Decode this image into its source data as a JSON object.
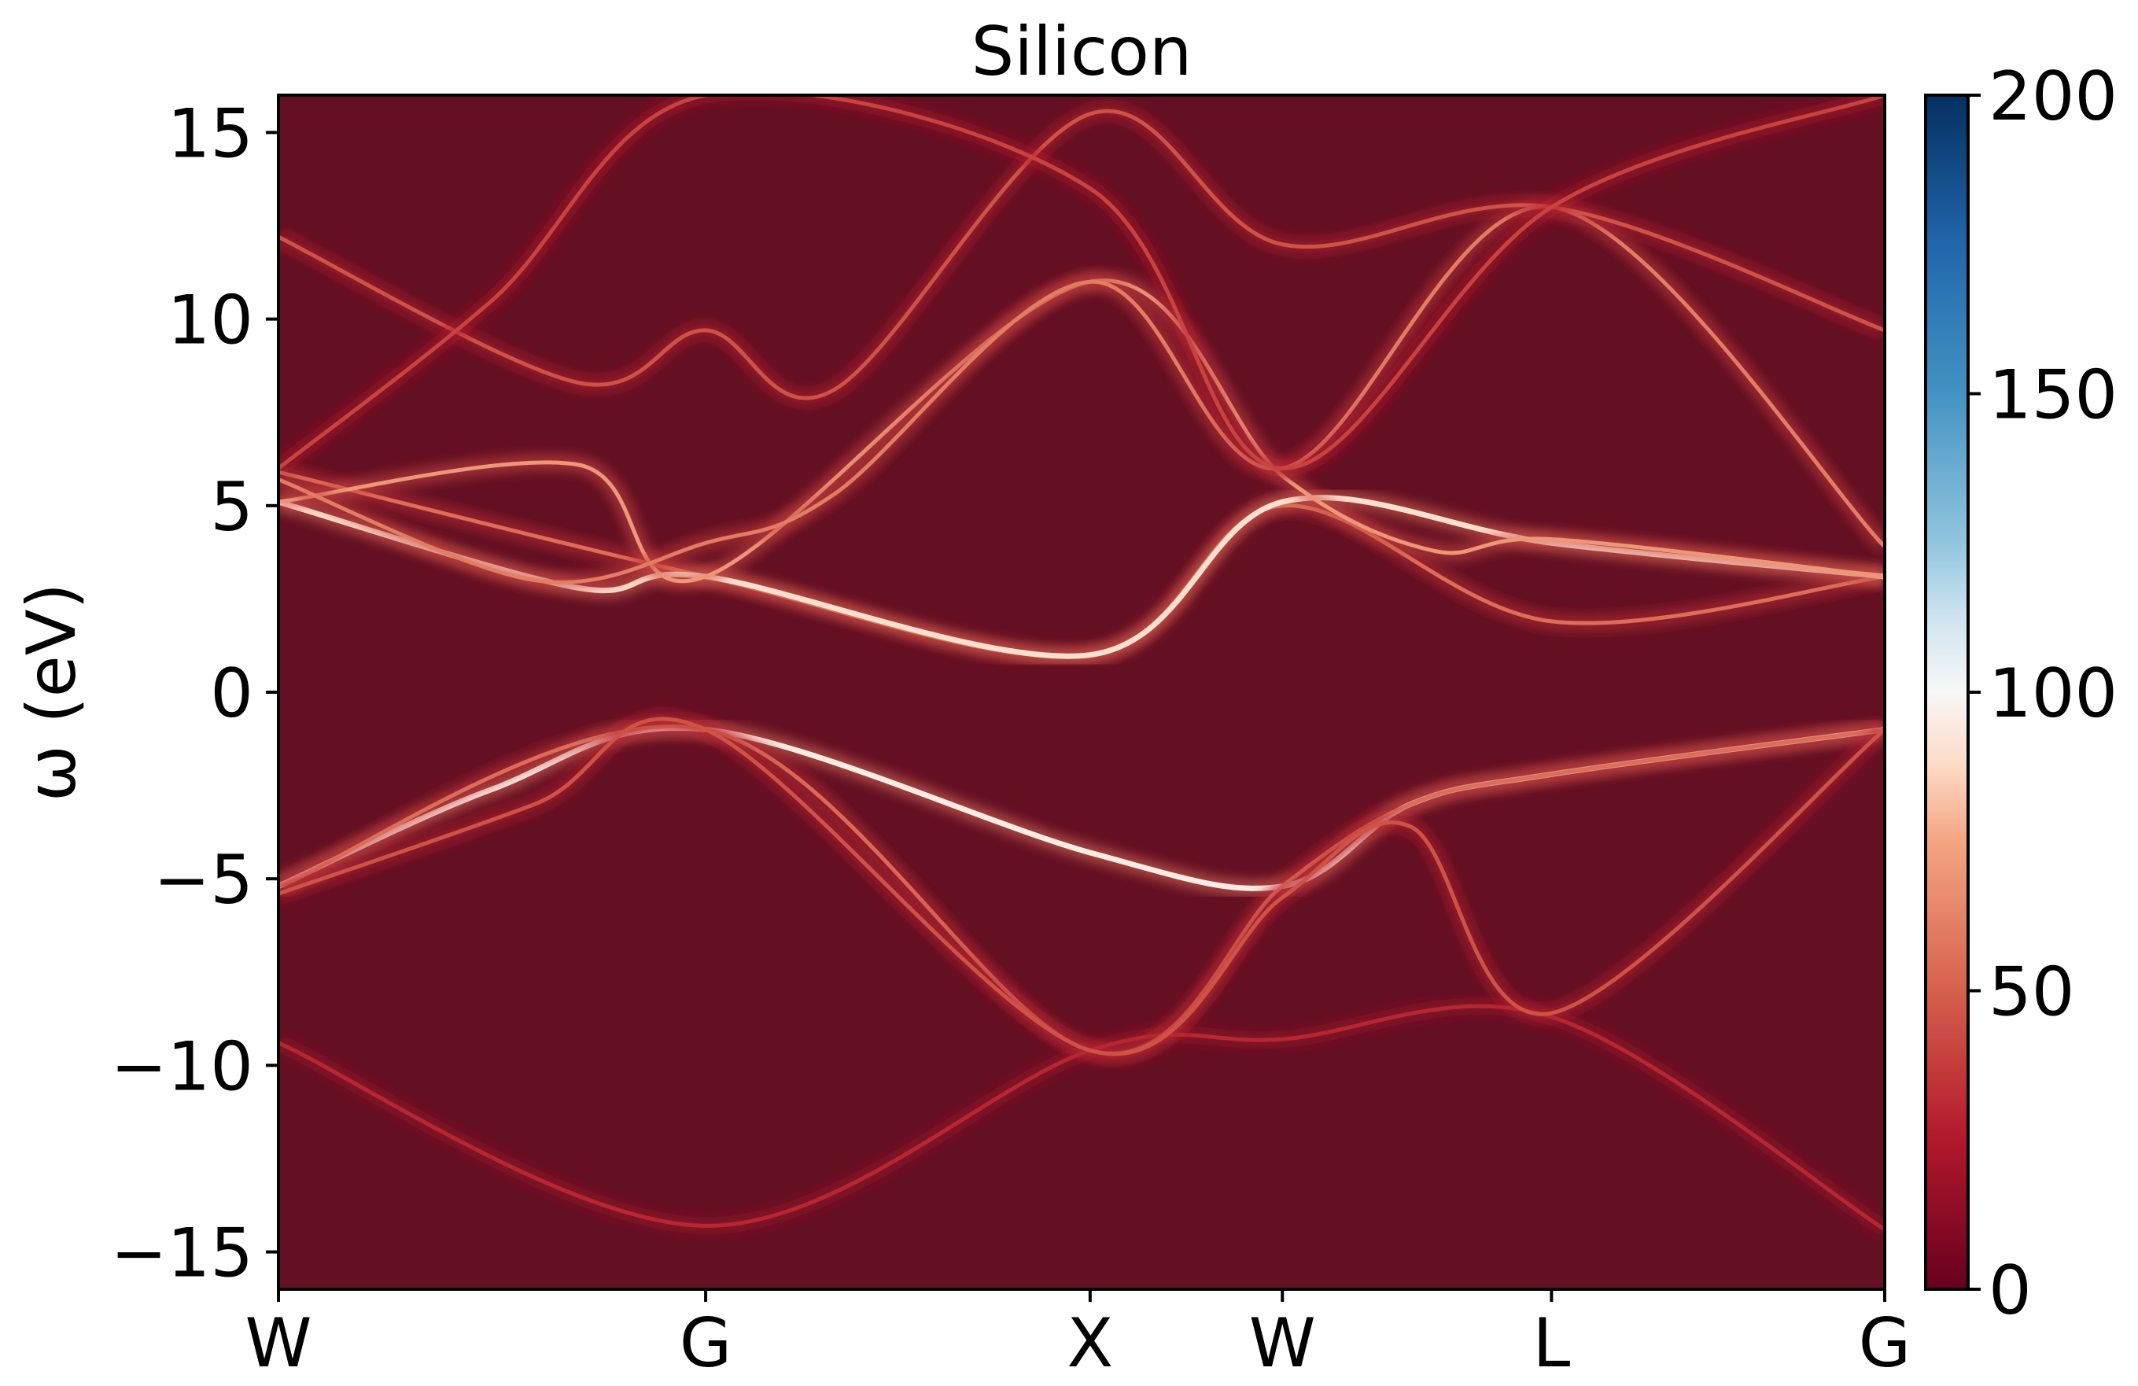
{
  "chart_data": {
    "type": "heatmap",
    "title": "Silicon",
    "xlabel": "",
    "ylabel": "ω (eV)",
    "ylim": [
      -16,
      16
    ],
    "x_ticks": [
      {
        "label": "W",
        "k": 0.0
      },
      {
        "label": "G",
        "k": 1.0
      },
      {
        "label": "X",
        "k": 1.9
      },
      {
        "label": "W",
        "k": 2.35
      },
      {
        "label": "L",
        "k": 2.98
      },
      {
        "label": "G",
        "k": 3.76
      }
    ],
    "xlim": [
      0,
      3.76
    ],
    "y_ticks": [
      {
        "label": "−15",
        "value": -15
      },
      {
        "label": "−10",
        "value": -10
      },
      {
        "label": "−5",
        "value": -5
      },
      {
        "label": "0",
        "value": 0
      },
      {
        "label": "5",
        "value": 5
      },
      {
        "label": "10",
        "value": 10
      },
      {
        "label": "15",
        "value": 15
      }
    ],
    "colorbar": {
      "colormap": "RdBu",
      "range": [
        0,
        200
      ],
      "ticks": [
        {
          "label": "0",
          "value": 0
        },
        {
          "label": "50",
          "value": 50
        },
        {
          "label": "100",
          "value": 100
        },
        {
          "label": "150",
          "value": 150
        },
        {
          "label": "200",
          "value": 200
        }
      ]
    },
    "background_color": "#640f22",
    "series": [
      {
        "k": [
          0,
          1.0,
          1.9,
          2.35,
          2.98,
          3.76
        ],
        "omega": [
          -9.4,
          -14.3,
          -9.6,
          -9.3,
          -8.7,
          -14.4
        ],
        "intensity": 30
      },
      {
        "k": [
          0,
          0.5,
          1.0,
          1.9,
          2.35,
          2.65,
          2.98,
          3.76
        ],
        "omega": [
          -5.2,
          -2.6,
          -1.0,
          -4.3,
          -5.2,
          -3.0,
          -2.2,
          -1.0
        ],
        "intensity": 95
      },
      {
        "k": [
          0,
          1.0,
          1.9,
          2.35,
          2.65,
          2.98,
          3.76
        ],
        "omega": [
          -5.2,
          -1.0,
          -9.6,
          -5.2,
          -3.0,
          -2.2,
          -1.0
        ],
        "intensity": 55
      },
      {
        "k": [
          0,
          0.6,
          1.0,
          1.9,
          2.35,
          2.65,
          2.98,
          3.76
        ],
        "omega": [
          -5.4,
          -3.0,
          -1.0,
          -9.6,
          -5.5,
          -3.6,
          -8.6,
          -1.0
        ],
        "intensity": 45
      },
      {
        "k": [
          0,
          1.0,
          1.9,
          2.35,
          2.98,
          3.76
        ],
        "omega": [
          5.9,
          3.1,
          1.0,
          5.0,
          1.9,
          3.1
        ],
        "intensity": 55
      },
      {
        "k": [
          0,
          0.7,
          1.0,
          1.9,
          2.35,
          2.98,
          3.76
        ],
        "omega": [
          5.1,
          2.8,
          3.1,
          1.0,
          5.1,
          4.0,
          3.1
        ],
        "intensity": 90
      },
      {
        "k": [
          0,
          0.7,
          1.0,
          1.9,
          2.35,
          2.7,
          2.98,
          3.76
        ],
        "omega": [
          5.1,
          6.1,
          3.1,
          11.0,
          5.8,
          3.8,
          4.1,
          3.1
        ],
        "intensity": 70
      },
      {
        "k": [
          0,
          0.6,
          1.0,
          1.3,
          1.9,
          2.35,
          2.98,
          3.76
        ],
        "omega": [
          5.7,
          3.0,
          4.0,
          5.3,
          11.0,
          6.0,
          13.0,
          3.9
        ],
        "intensity": 60
      },
      {
        "k": [
          0,
          0.7,
          1.0,
          1.3,
          1.9,
          2.35,
          2.98,
          3.76
        ],
        "omega": [
          12.2,
          8.3,
          9.7,
          8.1,
          15.5,
          12.0,
          13.0,
          9.7
        ],
        "intensity": 45
      },
      {
        "k": [
          0,
          0.5,
          1.0,
          1.9,
          2.35,
          2.98,
          3.76
        ],
        "omega": [
          6.0,
          10.5,
          16.0,
          13.5,
          6.0,
          13.0,
          16.0
        ],
        "intensity": 40
      }
    ]
  }
}
